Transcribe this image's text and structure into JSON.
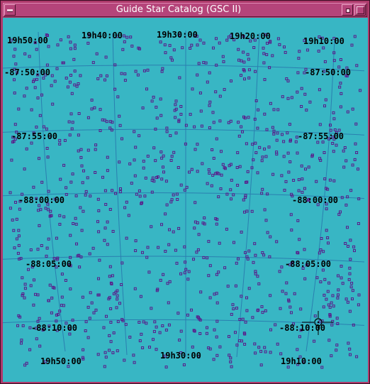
{
  "window": {
    "title": "Guide Star Catalog (GSC II)"
  },
  "colors": {
    "frame": "#ae3a6b",
    "title_text": "#ffffff",
    "background": "#38b6c4",
    "grid_line": "#2a7fb0",
    "star": "#5a1a8a",
    "label": "#000000"
  },
  "icons": {
    "window_menu": "window-menu-icon",
    "minimize": "minimize-icon",
    "maximize": "maximize-icon",
    "marker": "crosshair-circle-icon"
  },
  "ra_labels": {
    "top": [
      "19h50:00",
      "19h40:00",
      "19h30:00",
      "19h20:00",
      "19h10:00"
    ],
    "bottom": [
      "19h50:00",
      "19h30:00",
      "19h10:00"
    ]
  },
  "dec_labels": {
    "left": [
      "-87:50:00",
      "-87:55:00",
      "-88:00:00",
      "-88:05:00",
      "-88:10:00"
    ],
    "right": [
      "-87:50:00",
      "-87:55:00",
      "-88:00:00",
      "-88:05:00",
      "-88:10:00"
    ]
  }
}
